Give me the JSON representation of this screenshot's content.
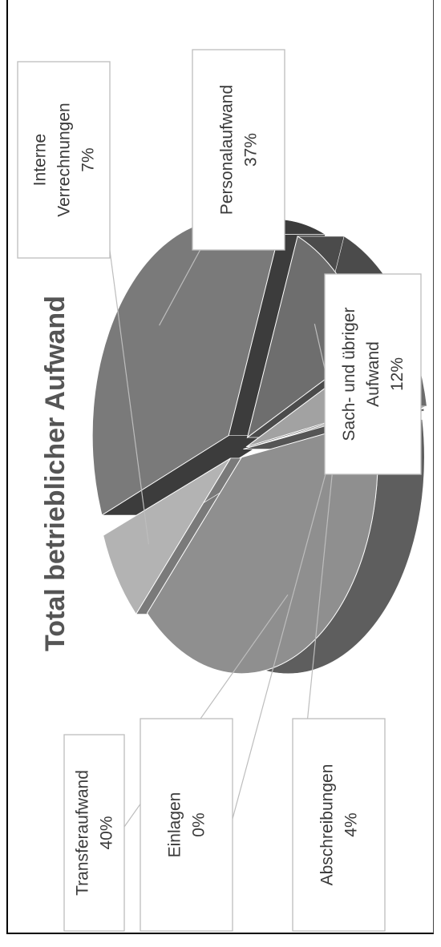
{
  "chart_data": {
    "type": "pie",
    "title": "Total betrieblicher Aufwand",
    "slices": [
      {
        "label_lines": [
          "Personalaufwand",
          "37%"
        ],
        "value": 37,
        "color": "#7a7a7a",
        "side": "#3c3c3c"
      },
      {
        "label_lines": [
          "Sach- und übriger",
          "Aufwand",
          "12%"
        ],
        "value": 12,
        "color": "#6e6e6e",
        "side": "#4b4b4b"
      },
      {
        "label_lines": [
          "Abschreibungen",
          "4%"
        ],
        "value": 4,
        "color": "#a2a2a2",
        "side": "#6c6c6c"
      },
      {
        "label_lines": [
          "Einlagen",
          "0%"
        ],
        "value": 0,
        "color": "#888888",
        "side": "#555555"
      },
      {
        "label_lines": [
          "Transferaufwand",
          "40%"
        ],
        "value": 40,
        "color": "#8f8f8f",
        "side": "#5e5e5e"
      },
      {
        "label_lines": [
          "Interne",
          "Verrechnungen",
          "7%"
        ],
        "value": 7,
        "color": "#b3b3b3",
        "side": "#7a7a7a"
      }
    ]
  }
}
